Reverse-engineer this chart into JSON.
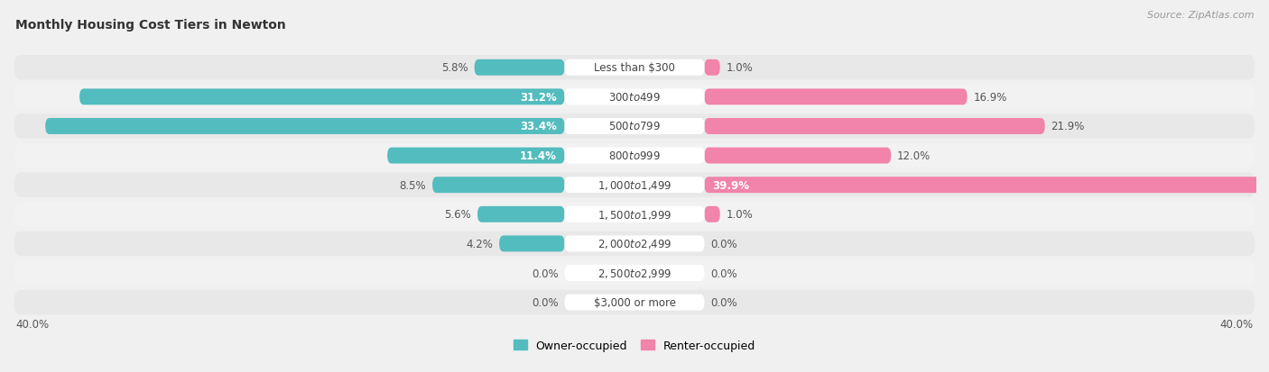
{
  "title": "Monthly Housing Cost Tiers in Newton",
  "source": "Source: ZipAtlas.com",
  "categories": [
    "Less than $300",
    "$300 to $499",
    "$500 to $799",
    "$800 to $999",
    "$1,000 to $1,499",
    "$1,500 to $1,999",
    "$2,000 to $2,499",
    "$2,500 to $2,999",
    "$3,000 or more"
  ],
  "owner_values": [
    5.8,
    31.2,
    33.4,
    11.4,
    8.5,
    5.6,
    4.2,
    0.0,
    0.0
  ],
  "renter_values": [
    1.0,
    16.9,
    21.9,
    12.0,
    39.9,
    1.0,
    0.0,
    0.0,
    0.0
  ],
  "owner_color": "#53bcbe",
  "renter_color": "#f283aa",
  "axis_limit": 40.0,
  "bg_color": "#f0f0f0",
  "row_colors": [
    "#e8e8e8",
    "#f2f2f2"
  ],
  "title_fontsize": 10,
  "label_fontsize": 8.5,
  "source_fontsize": 8,
  "legend_fontsize": 9,
  "value_fontsize": 8.5
}
